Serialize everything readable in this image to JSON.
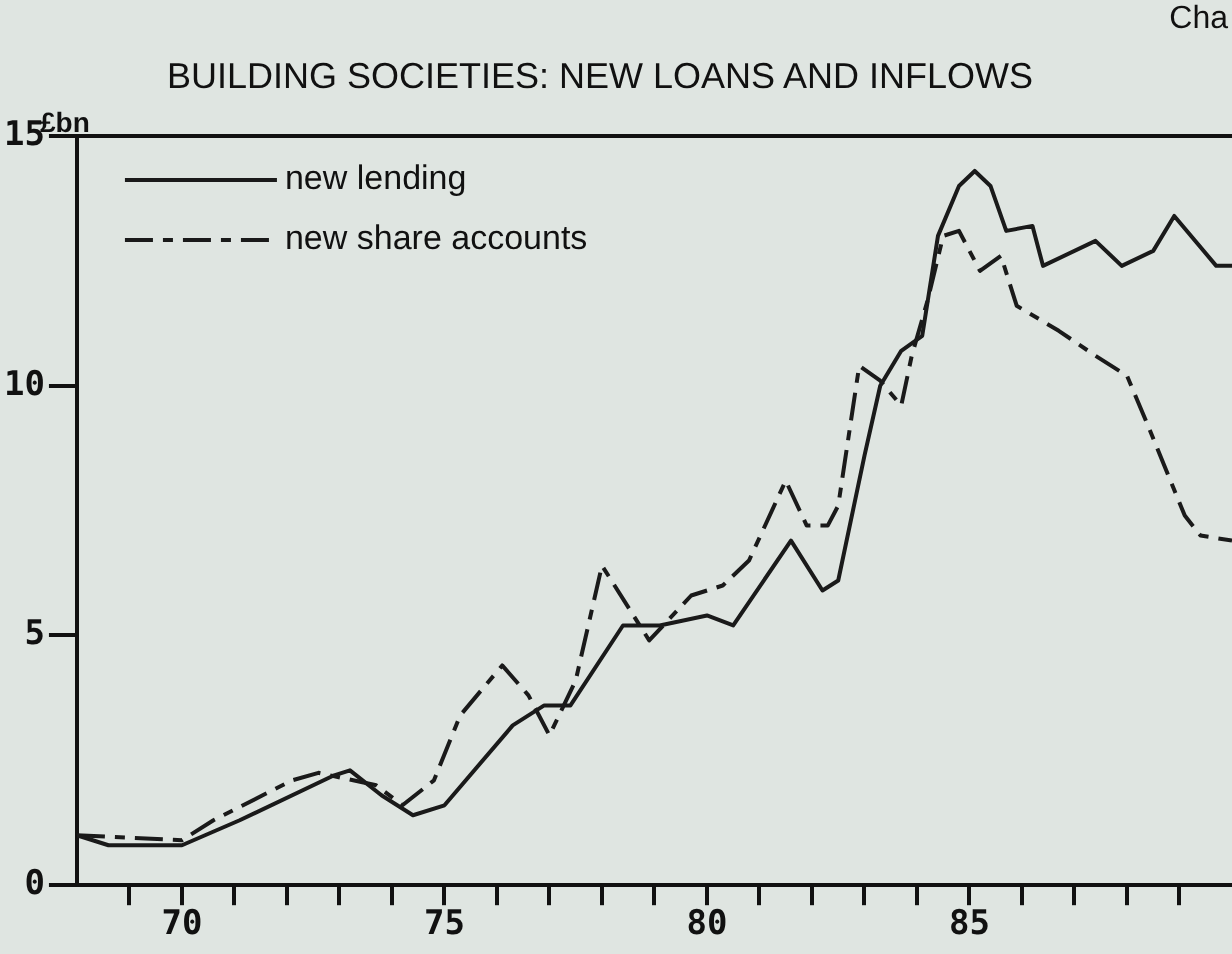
{
  "chart_data": {
    "type": "line",
    "title": "BUILDING SOCIETIES: NEW LOANS AND INFLOWS",
    "ylabel": "£bn",
    "annotations": [
      "Cha"
    ],
    "xlim": [
      68,
      90
    ],
    "ylim": [
      0,
      15
    ],
    "xticks": [
      {
        "value": 69,
        "label": null
      },
      70,
      {
        "value": 71,
        "label": null
      },
      {
        "value": 72,
        "label": null
      },
      {
        "value": 73,
        "label": null
      },
      {
        "value": 74,
        "label": null
      },
      75,
      {
        "value": 76,
        "label": null
      },
      {
        "value": 77,
        "label": null
      },
      {
        "value": 78,
        "label": null
      },
      {
        "value": 79,
        "label": null
      },
      80,
      {
        "value": 81,
        "label": null
      },
      {
        "value": 82,
        "label": null
      },
      {
        "value": 83,
        "label": null
      },
      {
        "value": 84,
        "label": null
      },
      85,
      {
        "value": 86,
        "label": null
      },
      {
        "value": 87,
        "label": null
      },
      {
        "value": 88,
        "label": null
      },
      {
        "value": 89,
        "label": null
      }
    ],
    "yticks": [
      0,
      5,
      10,
      15
    ],
    "grid": false,
    "legend": "top left",
    "marker": "none",
    "series": [
      {
        "name": "new lending",
        "color": "#1a1a1a",
        "line_style": "solid",
        "x": [
          68,
          68.6,
          70,
          71.1,
          72.9,
          73.2,
          73.8,
          74.4,
          75,
          76.3,
          76.9,
          77.4,
          78.4,
          79.1,
          80,
          80.5,
          81.6,
          82.2,
          82.5,
          83,
          83.3,
          83.7,
          84.1,
          84.4,
          84.8,
          85.1,
          85.4,
          85.7,
          86.2,
          86.4,
          87.4,
          87.9,
          88.5,
          88.9,
          89.7,
          90
        ],
        "values": [
          1,
          0.8,
          0.8,
          1.3,
          2.2,
          2.3,
          1.8,
          1.4,
          1.6,
          3.2,
          3.6,
          3.6,
          5.2,
          5.2,
          5.4,
          5.2,
          6.9,
          5.9,
          6.1,
          8.6,
          10,
          10.7,
          11,
          13,
          14,
          14.3,
          14,
          13.1,
          13.2,
          12.4,
          12.9,
          12.4,
          12.7,
          13.4,
          12.4,
          12.4
        ]
      },
      {
        "name": "new share accounts",
        "color": "#1a1a1a",
        "line_style": "dashed",
        "x": [
          68,
          70,
          70.6,
          72.1,
          72.6,
          73.7,
          74.2,
          74.8,
          75.3,
          76.1,
          76.6,
          77,
          77.5,
          78,
          78.9,
          79.7,
          80.3,
          80.8,
          81.5,
          81.9,
          82.3,
          82.5,
          82.9,
          83.3,
          83.7,
          83.9,
          84.2,
          84.5,
          84.8,
          85.2,
          85.6,
          85.9,
          86.7,
          87.4,
          88,
          88.4,
          89.1,
          89.4,
          90
        ],
        "values": [
          1,
          0.9,
          1.3,
          2.1,
          2.25,
          2,
          1.6,
          2.1,
          3.4,
          4.4,
          3.8,
          3,
          4.1,
          6.4,
          4.9,
          5.8,
          6,
          6.5,
          8.1,
          7.2,
          7.2,
          7.6,
          10.4,
          10.1,
          9.6,
          10.6,
          11.7,
          13,
          13.1,
          12.3,
          12.6,
          11.6,
          11.1,
          10.6,
          10.2,
          9.2,
          7.4,
          7,
          6.9
        ]
      }
    ]
  }
}
